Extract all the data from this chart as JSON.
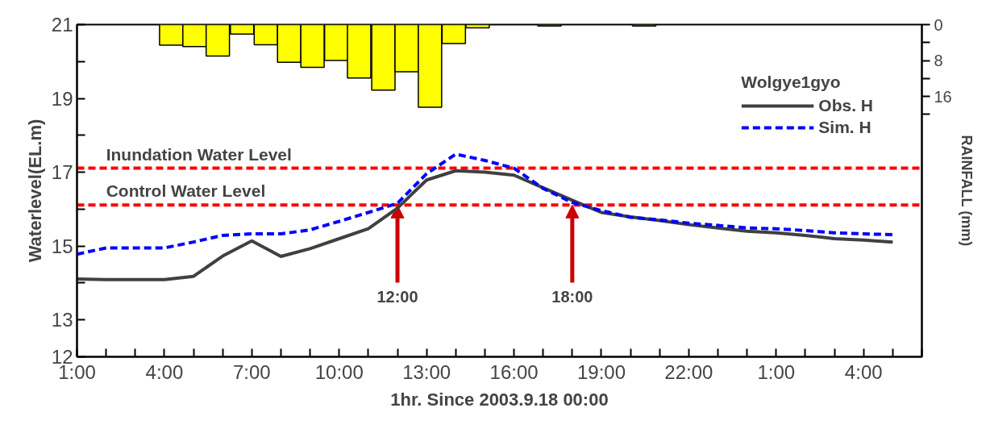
{
  "chart_data": {
    "type": "line",
    "xlabel": "1hr. Since 2003.9.18 00:00",
    "ylabel": "Waterlevel(EL.m)",
    "y2label": "RAINFALL (mm)",
    "legend_title": "Wolgye1gyo",
    "legend": "top right",
    "grid": false,
    "x": [
      "2003-09-18T01:00",
      "2003-09-18T02:00",
      "2003-09-18T03:00",
      "2003-09-18T04:00",
      "2003-09-18T05:00",
      "2003-09-18T06:00",
      "2003-09-18T07:00",
      "2003-09-18T08:00",
      "2003-09-18T09:00",
      "2003-09-18T10:00",
      "2003-09-18T11:00",
      "2003-09-18T12:00",
      "2003-09-18T13:00",
      "2003-09-18T14:00",
      "2003-09-18T15:00",
      "2003-09-18T16:00",
      "2003-09-18T17:00",
      "2003-09-18T18:00",
      "2003-09-18T19:00",
      "2003-09-18T20:00",
      "2003-09-18T21:00",
      "2003-09-18T22:00",
      "2003-09-18T23:00",
      "2003-09-19T00:00",
      "2003-09-19T01:00",
      "2003-09-19T02:00",
      "2003-09-19T03:00",
      "2003-09-19T04:00",
      "2003-09-19T05:00"
    ],
    "series": [
      {
        "name": "Obs. H",
        "color": "#404040",
        "line_style": "solid",
        "values": [
          14.11,
          14.09,
          14.09,
          14.09,
          14.18,
          14.73,
          15.14,
          14.72,
          14.93,
          15.2,
          15.47,
          16.03,
          16.79,
          17.04,
          17.0,
          16.92,
          16.58,
          16.24,
          15.91,
          15.79,
          15.69,
          15.58,
          15.49,
          15.4,
          15.36,
          15.29,
          15.2,
          15.16,
          15.11
        ]
      },
      {
        "name": "Sim. H",
        "color": "#0000ff",
        "line_style": "dashed",
        "values": [
          14.78,
          14.95,
          14.95,
          14.95,
          15.11,
          15.29,
          15.33,
          15.33,
          15.44,
          15.67,
          15.91,
          16.16,
          16.96,
          17.49,
          17.32,
          17.11,
          16.56,
          16.18,
          15.96,
          15.78,
          15.71,
          15.62,
          15.56,
          15.49,
          15.47,
          15.42,
          15.36,
          15.33,
          15.31
        ]
      },
      {
        "type": "bar",
        "axis": "y2",
        "color": "#ffff00",
        "x": [
          "2003-09-18T04:14",
          "2003-09-18T05:02",
          "2003-09-18T05:50",
          "2003-09-18T06:40",
          "2003-09-18T07:29",
          "2003-09-18T08:17",
          "2003-09-18T09:05",
          "2003-09-18T09:54",
          "2003-09-18T10:41",
          "2003-09-18T11:31",
          "2003-09-18T12:19",
          "2003-09-18T13:07",
          "2003-09-18T13:56",
          "2003-09-18T14:45",
          "2003-09-18T17:13",
          "2003-09-18T20:28"
        ],
        "values": [
          4.6,
          4.9,
          7.0,
          2.1,
          4.5,
          8.4,
          9.5,
          8.0,
          11.9,
          14.6,
          10.5,
          18.4,
          4.2,
          0.7,
          0.3,
          0.3
        ]
      }
    ],
    "xlim": [
      "2003-09-18T01:00",
      "2003-09-19T06:00"
    ],
    "xticks": [
      {
        "value": "2003-09-18T01:00",
        "label": "1:00"
      },
      {
        "value": "2003-09-18T02:00",
        "label": null
      },
      {
        "value": "2003-09-18T03:00",
        "label": null
      },
      {
        "value": "2003-09-18T04:00",
        "label": "4:00"
      },
      {
        "value": "2003-09-18T05:00",
        "label": null
      },
      {
        "value": "2003-09-18T06:00",
        "label": null
      },
      {
        "value": "2003-09-18T07:00",
        "label": "7:00"
      },
      {
        "value": "2003-09-18T08:00",
        "label": null
      },
      {
        "value": "2003-09-18T09:00",
        "label": null
      },
      {
        "value": "2003-09-18T10:00",
        "label": "10:00"
      },
      {
        "value": "2003-09-18T11:00",
        "label": null
      },
      {
        "value": "2003-09-18T12:00",
        "label": null
      },
      {
        "value": "2003-09-18T13:00",
        "label": "13:00"
      },
      {
        "value": "2003-09-18T14:00",
        "label": null
      },
      {
        "value": "2003-09-18T15:00",
        "label": null
      },
      {
        "value": "2003-09-18T16:00",
        "label": "16:00"
      },
      {
        "value": "2003-09-18T17:00",
        "label": null
      },
      {
        "value": "2003-09-18T18:00",
        "label": null
      },
      {
        "value": "2003-09-18T19:00",
        "label": "19:00"
      },
      {
        "value": "2003-09-18T20:00",
        "label": null
      },
      {
        "value": "2003-09-18T21:00",
        "label": null
      },
      {
        "value": "2003-09-18T22:00",
        "label": "22:00"
      },
      {
        "value": "2003-09-18T23:00",
        "label": null
      },
      {
        "value": "2003-09-19T00:00",
        "label": null
      },
      {
        "value": "2003-09-19T01:00",
        "label": "1:00"
      },
      {
        "value": "2003-09-19T02:00",
        "label": null
      },
      {
        "value": "2003-09-19T03:00",
        "label": null
      },
      {
        "value": "2003-09-19T04:00",
        "label": "4:00"
      },
      {
        "value": "2003-09-19T05:00",
        "label": null
      },
      {
        "value": "2003-09-19T06:00",
        "label": null
      }
    ],
    "ylim": [
      12,
      21
    ],
    "yticks": [
      12,
      13,
      {
        "value": 14,
        "label": null
      },
      15,
      {
        "value": 16,
        "label": null
      },
      17,
      {
        "value": 18,
        "label": null
      },
      19,
      {
        "value": 20,
        "label": null
      },
      21
    ],
    "y2lim": [
      74,
      0
    ],
    "y2ticks": [
      0,
      {
        "value": 4,
        "label": null
      },
      8,
      {
        "value": 12,
        "label": null
      },
      16,
      {
        "value": 20,
        "label": null
      }
    ],
    "ref_lines": [
      {
        "axis": "y",
        "value": 17.11,
        "label": "Inundation Water Level",
        "color": "#ff0000",
        "line_style": "dashed"
      },
      {
        "axis": "y",
        "value": 16.11,
        "label": "Control Water Level",
        "color": "#ff0000",
        "line_style": "dashed"
      }
    ],
    "annotations": [
      {
        "text": "12:00",
        "x": "2003-09-18T12:00",
        "y": 16.11
      },
      {
        "text": "18:00",
        "x": "2003-09-18T18:00",
        "y": 16.11
      }
    ]
  }
}
